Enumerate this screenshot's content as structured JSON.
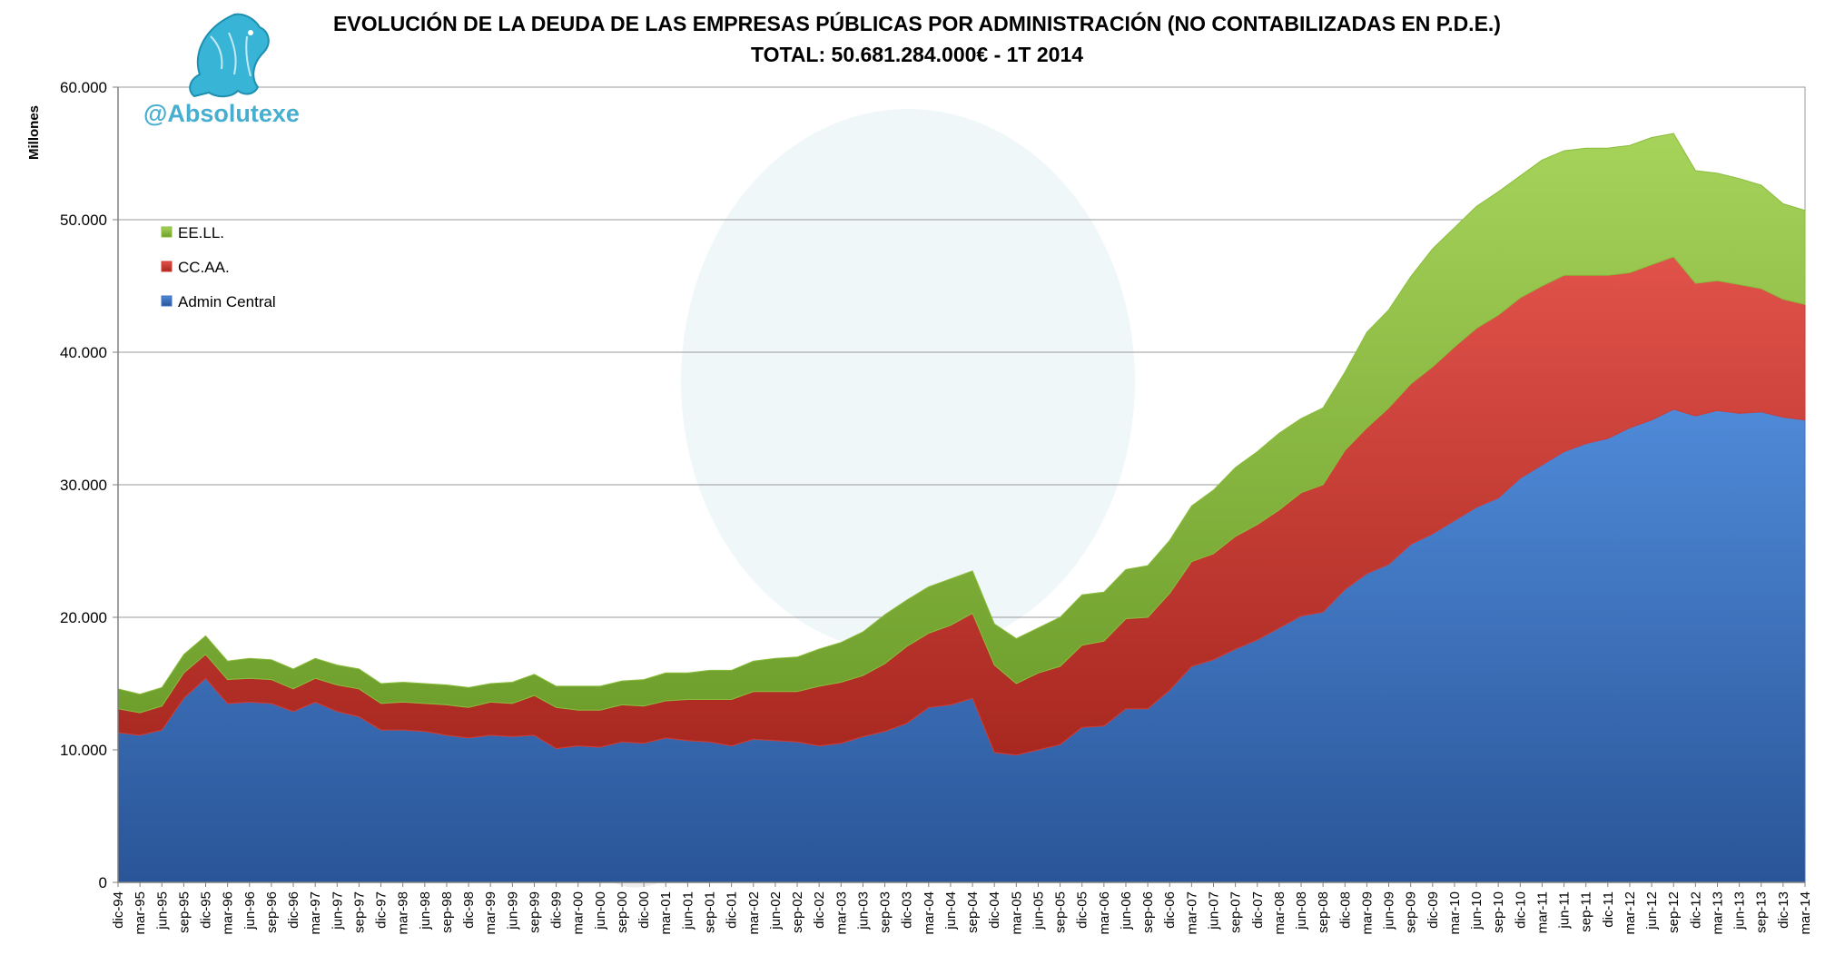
{
  "chart_data": {
    "type": "area",
    "stacked": true,
    "title": "EVOLUCIÓN DE LA DEUDA DE LAS EMPRESAS PÚBLICAS POR ADMINISTRACIÓN (NO CONTABILIZADAS EN P.D.E.)",
    "subtitle": "TOTAL: 50.681.284.000€  - 1T 2014",
    "watermark": "@Absolutexe",
    "xlabel": "",
    "ylabel": "Millones",
    "ylim": [
      0,
      60000
    ],
    "yticks": [
      "0",
      "10.000",
      "20.000",
      "30.000",
      "40.000",
      "50.000",
      "60.000"
    ],
    "grid": true,
    "legend_position": "top-left",
    "categories": [
      "dic-94",
      "mar-95",
      "jun-95",
      "sep-95",
      "dic-95",
      "mar-96",
      "jun-96",
      "sep-96",
      "dic-96",
      "mar-97",
      "jun-97",
      "sep-97",
      "dic-97",
      "mar-98",
      "jun-98",
      "sep-98",
      "dic-98",
      "mar-99",
      "jun-99",
      "sep-99",
      "dic-99",
      "mar-00",
      "jun-00",
      "sep-00",
      "dic-00",
      "mar-01",
      "jun-01",
      "sep-01",
      "dic-01",
      "mar-02",
      "jun-02",
      "sep-02",
      "dic-02",
      "mar-03",
      "jun-03",
      "sep-03",
      "dic-03",
      "mar-04",
      "jun-04",
      "sep-04",
      "dic-04",
      "mar-05",
      "jun-05",
      "sep-05",
      "dic-05",
      "mar-06",
      "jun-06",
      "sep-06",
      "dic-06",
      "mar-07",
      "jun-07",
      "sep-07",
      "dic-07",
      "mar-08",
      "jun-08",
      "sep-08",
      "dic-08",
      "mar-09",
      "jun-09",
      "sep-09",
      "dic-09",
      "mar-10",
      "jun-10",
      "sep-10",
      "dic-10",
      "mar-11",
      "jun-11",
      "sep-11",
      "dic-11",
      "mar-12",
      "jun-12",
      "sep-12",
      "dic-12",
      "mar-13",
      "jun-13",
      "sep-13",
      "dic-13",
      "mar-14"
    ],
    "series": [
      {
        "name": "Admin Central",
        "color": "#3f74c2",
        "values": [
          11300,
          11100,
          11500,
          13900,
          15400,
          13500,
          13600,
          13500,
          12900,
          13600,
          12900,
          12500,
          11500,
          11500,
          11400,
          11100,
          10900,
          11100,
          11000,
          11100,
          10100,
          10300,
          10200,
          10600,
          10500,
          10900,
          10700,
          10600,
          10300,
          10800,
          10700,
          10600,
          10300,
          10500,
          11000,
          11400,
          12000,
          13200,
          13400,
          13900,
          9800,
          9600,
          10000,
          10400,
          11700,
          11800,
          13100,
          13100,
          14500,
          16300,
          16800,
          17600,
          18300,
          19200,
          20100,
          20400,
          22100,
          23300,
          24000,
          25500,
          26300,
          27300,
          28300,
          29000,
          30500,
          31500,
          32500,
          33100,
          33500,
          34300,
          34900,
          35700,
          35200,
          35600,
          35400,
          35500,
          35100,
          34900
        ]
      },
      {
        "name": "CC.AA.",
        "color": "#d23b33",
        "values": [
          1800,
          1700,
          1800,
          1900,
          1800,
          1800,
          1800,
          1800,
          1700,
          1800,
          2000,
          2100,
          2000,
          2100,
          2100,
          2300,
          2300,
          2500,
          2500,
          3000,
          3100,
          2700,
          2800,
          2800,
          2800,
          2800,
          3100,
          3200,
          3500,
          3600,
          3700,
          3800,
          4500,
          4600,
          4600,
          5100,
          5800,
          5600,
          6000,
          6400,
          6600,
          5400,
          5800,
          5900,
          6200,
          6400,
          6800,
          6900,
          7300,
          7900,
          8000,
          8500,
          8700,
          8900,
          9300,
          9600,
          10500,
          11000,
          11800,
          12100,
          12600,
          13100,
          13500,
          13800,
          13600,
          13500,
          13300,
          12700,
          12300,
          11700,
          11700,
          11500,
          10000,
          9800,
          9700,
          9300,
          8900,
          8700
        ]
      },
      {
        "name": "EE.LL.",
        "color": "#8bbd3c",
        "values": [
          1500,
          1400,
          1400,
          1400,
          1400,
          1400,
          1500,
          1500,
          1500,
          1500,
          1500,
          1500,
          1500,
          1500,
          1500,
          1500,
          1500,
          1400,
          1600,
          1600,
          1600,
          1800,
          1800,
          1800,
          2000,
          2100,
          2000,
          2200,
          2200,
          2300,
          2500,
          2600,
          2800,
          3000,
          3300,
          3700,
          3500,
          3500,
          3500,
          3200,
          3100,
          3400,
          3400,
          3700,
          3800,
          3700,
          3700,
          3900,
          4000,
          4200,
          4800,
          5200,
          5500,
          5800,
          5600,
          5800,
          5900,
          7200,
          7400,
          8100,
          8900,
          9000,
          9200,
          9300,
          9200,
          9500,
          9400,
          9600,
          9600,
          9600,
          9600,
          9300,
          8500,
          8100,
          8000,
          7800,
          7200,
          7100
        ]
      }
    ]
  }
}
